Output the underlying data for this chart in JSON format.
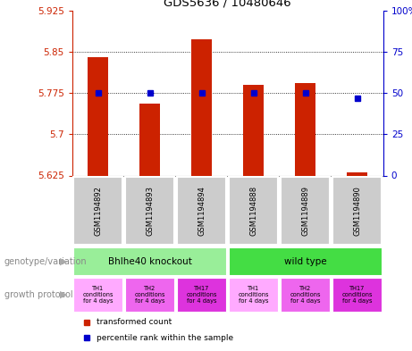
{
  "title": "GDS5636 / 10480646",
  "samples": [
    "GSM1194892",
    "GSM1194893",
    "GSM1194894",
    "GSM1194888",
    "GSM1194889",
    "GSM1194890"
  ],
  "transformed_counts": [
    5.84,
    5.755,
    5.872,
    5.79,
    5.793,
    5.63
  ],
  "percentile_ranks": [
    50,
    50,
    50,
    50,
    50,
    47
  ],
  "y_min": 5.625,
  "y_max": 5.925,
  "y_ticks": [
    5.625,
    5.7,
    5.775,
    5.85,
    5.925
  ],
  "y2_ticks": [
    0,
    25,
    50,
    75,
    100
  ],
  "bar_color": "#cc2200",
  "dot_color": "#0000cc",
  "sample_box_color": "#cccccc",
  "genotype_groups": [
    {
      "label": "Bhlhe40 knockout",
      "start": 0,
      "end": 3,
      "color": "#99ee99"
    },
    {
      "label": "wild type",
      "start": 3,
      "end": 6,
      "color": "#44dd44"
    }
  ],
  "growth_protocols": [
    {
      "label": "TH1\nconditions\nfor 4 days",
      "color": "#ffaaff"
    },
    {
      "label": "TH2\nconditions\nfor 4 days",
      "color": "#ee66ee"
    },
    {
      "label": "TH17\nconditions\nfor 4 days",
      "color": "#dd33dd"
    },
    {
      "label": "TH1\nconditions\nfor 4 days",
      "color": "#ffaaff"
    },
    {
      "label": "TH2\nconditions\nfor 4 days",
      "color": "#ee66ee"
    },
    {
      "label": "TH17\nconditions\nfor 4 days",
      "color": "#dd33dd"
    }
  ],
  "legend_items": [
    {
      "label": "transformed count",
      "color": "#cc2200"
    },
    {
      "label": "percentile rank within the sample",
      "color": "#0000cc"
    }
  ],
  "left_label_geno": "genotype/variation",
  "left_label_proto": "growth protocol",
  "bar_color_label": "#cc2200",
  "dot_color_label": "#0000cc"
}
